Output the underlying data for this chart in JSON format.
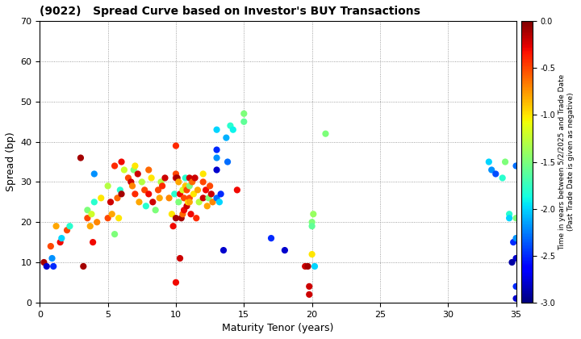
{
  "title": "(9022)   Spread Curve based on Investor's BUY Transactions",
  "xlabel": "Maturity Tenor (years)",
  "ylabel": "Spread (bp)",
  "colorbar_label": "Time in years between 5/2/2025 and Trade Date\n(Past Trade Date is given as negative)",
  "xlim": [
    0,
    35
  ],
  "ylim": [
    0,
    70
  ],
  "xticks": [
    0,
    5,
    10,
    15,
    20,
    25,
    30,
    35
  ],
  "yticks": [
    0,
    10,
    20,
    30,
    40,
    50,
    60,
    70
  ],
  "cmap": "jet",
  "vmin": -3.0,
  "vmax": 0.0,
  "points": [
    [
      0.3,
      10,
      -0.1
    ],
    [
      0.5,
      9,
      -2.8
    ],
    [
      0.8,
      14,
      -0.5
    ],
    [
      0.9,
      11,
      -2.2
    ],
    [
      1.0,
      9,
      -2.5
    ],
    [
      1.2,
      19,
      -0.8
    ],
    [
      1.5,
      15,
      -0.3
    ],
    [
      1.6,
      16,
      -2.0
    ],
    [
      2.0,
      18,
      -0.5
    ],
    [
      2.2,
      19,
      -1.8
    ],
    [
      3.0,
      36,
      -0.1
    ],
    [
      3.2,
      9,
      -0.1
    ],
    [
      3.5,
      21,
      -0.5
    ],
    [
      3.5,
      23,
      -1.5
    ],
    [
      3.7,
      19,
      -0.8
    ],
    [
      3.8,
      22,
      -1.2
    ],
    [
      3.9,
      15,
      -0.3
    ],
    [
      4.0,
      25,
      -1.8
    ],
    [
      4.0,
      32,
      -2.2
    ],
    [
      4.2,
      20,
      -0.7
    ],
    [
      4.5,
      26,
      -1.0
    ],
    [
      5.0,
      21,
      -0.5
    ],
    [
      5.0,
      29,
      -1.3
    ],
    [
      5.2,
      25,
      -0.2
    ],
    [
      5.3,
      22,
      -0.8
    ],
    [
      5.5,
      34,
      -0.4
    ],
    [
      5.5,
      17,
      -1.5
    ],
    [
      5.7,
      26,
      -0.6
    ],
    [
      5.8,
      21,
      -1.0
    ],
    [
      5.9,
      28,
      -1.8
    ],
    [
      6.0,
      35,
      -0.3
    ],
    [
      6.0,
      27,
      -0.1
    ],
    [
      6.2,
      33,
      -1.2
    ],
    [
      6.5,
      31,
      -0.5
    ],
    [
      6.7,
      30,
      -0.2
    ],
    [
      6.8,
      29,
      -0.7
    ],
    [
      6.9,
      33,
      -1.5
    ],
    [
      7.0,
      27,
      -0.4
    ],
    [
      7.0,
      34,
      -1.0
    ],
    [
      7.2,
      32,
      -0.2
    ],
    [
      7.3,
      25,
      -0.8
    ],
    [
      7.5,
      30,
      -1.3
    ],
    [
      7.7,
      28,
      -0.5
    ],
    [
      7.8,
      24,
      -1.8
    ],
    [
      8.0,
      27,
      -0.3
    ],
    [
      8.0,
      33,
      -0.6
    ],
    [
      8.2,
      31,
      -1.0
    ],
    [
      8.3,
      25,
      -0.2
    ],
    [
      8.5,
      23,
      -1.5
    ],
    [
      8.7,
      28,
      -0.5
    ],
    [
      8.8,
      26,
      -0.8
    ],
    [
      8.9,
      30,
      -1.3
    ],
    [
      9.0,
      29,
      -0.4
    ],
    [
      9.2,
      31,
      -0.2
    ],
    [
      9.5,
      26,
      -0.7
    ],
    [
      9.7,
      22,
      -1.0
    ],
    [
      9.8,
      19,
      -0.3
    ],
    [
      9.9,
      27,
      -1.8
    ],
    [
      10.0,
      21,
      -0.1
    ],
    [
      10.0,
      32,
      -0.5
    ],
    [
      10.0,
      31,
      -0.2
    ],
    [
      10.0,
      39,
      -0.4
    ],
    [
      10.0,
      5,
      -0.3
    ],
    [
      10.1,
      31,
      -0.1
    ],
    [
      10.2,
      30,
      -0.8
    ],
    [
      10.2,
      25,
      -1.5
    ],
    [
      10.3,
      27,
      -0.3
    ],
    [
      10.3,
      11,
      -0.2
    ],
    [
      10.4,
      21,
      -0.1
    ],
    [
      10.5,
      22,
      -0.6
    ],
    [
      10.5,
      28,
      -1.2
    ],
    [
      10.6,
      26,
      -0.5
    ],
    [
      10.6,
      23,
      -0.3
    ],
    [
      10.7,
      29,
      -0.9
    ],
    [
      10.7,
      31,
      -1.8
    ],
    [
      10.8,
      24,
      -0.2
    ],
    [
      10.8,
      28,
      -0.5
    ],
    [
      10.9,
      25,
      -1.0
    ],
    [
      11.0,
      31,
      -0.2
    ],
    [
      11.0,
      26,
      -0.5
    ],
    [
      11.0,
      29,
      -1.5
    ],
    [
      11.0,
      25,
      -0.8
    ],
    [
      11.1,
      22,
      -0.3
    ],
    [
      11.2,
      30,
      -0.6
    ],
    [
      11.3,
      27,
      -1.0
    ],
    [
      11.4,
      31,
      -0.2
    ],
    [
      11.5,
      21,
      -0.4
    ],
    [
      11.6,
      28,
      -0.8
    ],
    [
      11.7,
      25,
      -1.3
    ],
    [
      12.0,
      26,
      -0.2
    ],
    [
      12.0,
      30,
      -0.5
    ],
    [
      12.0,
      32,
      -1.0
    ],
    [
      12.2,
      28,
      -0.3
    ],
    [
      12.3,
      24,
      -0.8
    ],
    [
      12.4,
      26,
      -1.5
    ],
    [
      12.5,
      29,
      -0.5
    ],
    [
      12.6,
      27,
      -0.2
    ],
    [
      12.7,
      25,
      -0.7
    ],
    [
      13.0,
      43,
      -2.0
    ],
    [
      13.0,
      36,
      -2.2
    ],
    [
      13.0,
      38,
      -2.5
    ],
    [
      13.0,
      33,
      -2.8
    ],
    [
      13.0,
      26,
      -2.3
    ],
    [
      13.2,
      25,
      -2.0
    ],
    [
      13.3,
      27,
      -2.5
    ],
    [
      13.5,
      13,
      -2.8
    ],
    [
      13.7,
      41,
      -2.1
    ],
    [
      13.8,
      35,
      -2.3
    ],
    [
      14.0,
      44,
      -1.8
    ],
    [
      14.2,
      43,
      -1.9
    ],
    [
      14.5,
      28,
      -0.3
    ],
    [
      15.0,
      47,
      -1.5
    ],
    [
      15.0,
      45,
      -1.6
    ],
    [
      17.0,
      16,
      -2.5
    ],
    [
      18.0,
      13,
      -2.8
    ],
    [
      19.5,
      9,
      -0.2
    ],
    [
      19.7,
      9,
      -0.1
    ],
    [
      19.8,
      4,
      -0.2
    ],
    [
      19.8,
      2,
      -0.2
    ],
    [
      20.0,
      20,
      -1.5
    ],
    [
      20.0,
      19,
      -1.6
    ],
    [
      20.1,
      22,
      -1.4
    ],
    [
      20.2,
      9,
      -2.0
    ],
    [
      20.0,
      12,
      -1.0
    ],
    [
      21.0,
      42,
      -1.5
    ],
    [
      33.0,
      35,
      -2.0
    ],
    [
      33.2,
      33,
      -2.2
    ],
    [
      33.5,
      32,
      -2.4
    ],
    [
      34.0,
      31,
      -1.8
    ],
    [
      34.2,
      35,
      -1.5
    ],
    [
      34.5,
      22,
      -1.8
    ],
    [
      34.5,
      21,
      -2.0
    ],
    [
      34.8,
      15,
      -2.5
    ],
    [
      35.0,
      16,
      -2.2
    ],
    [
      35.0,
      11,
      -2.8
    ],
    [
      35.0,
      4,
      -2.5
    ],
    [
      35.0,
      1,
      -2.8
    ],
    [
      35.0,
      34,
      -2.3
    ],
    [
      35.0,
      21,
      -1.5
    ],
    [
      34.7,
      10,
      -2.9
    ]
  ],
  "background_color": "#ffffff",
  "grid_color": "#888888",
  "marker_size": 35,
  "fig_width": 7.2,
  "fig_height": 4.2,
  "dpi": 100
}
